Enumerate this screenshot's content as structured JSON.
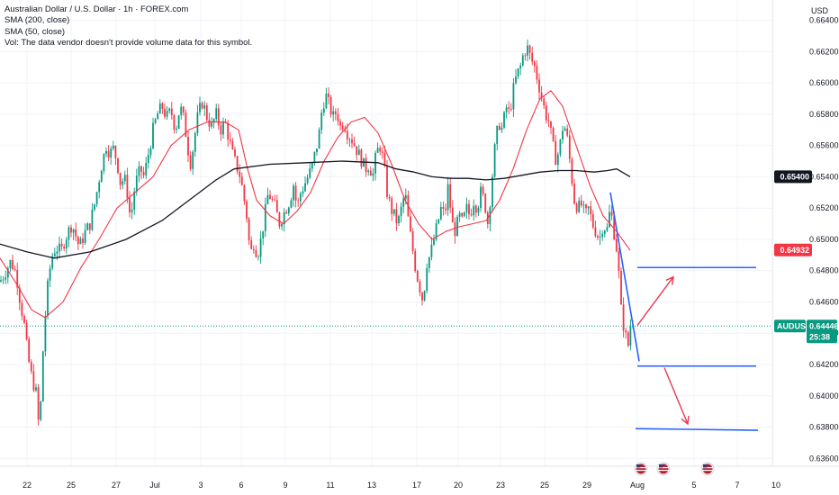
{
  "header": {
    "title": "Australian Dollar / U.S. Dollar · 1h · FOREX.com",
    "indicators": [
      "SMA (200, close)",
      "SMA (50, close)"
    ],
    "volume_note": "Vol: The data vendor doesn't provide volume data for this symbol."
  },
  "currency_label": "USD",
  "price_badges": {
    "sma200": {
      "text": "0.65400",
      "color": "#131722"
    },
    "sma50": {
      "text": "0.64932",
      "color": "#f23645"
    },
    "symbol": {
      "name": "AUDUSD",
      "price": "0.64446",
      "timer": "25:38",
      "color": "#089981"
    }
  },
  "colors": {
    "up": "#089981",
    "down": "#f23645",
    "sma50": "#f23645",
    "sma200": "#131722",
    "drawing_line": "#2962ff",
    "arrow": "#e53950",
    "grid": "#f0f3fa"
  },
  "events": [
    "us-flag-icon",
    "us-flag-icon",
    "us-flag-icon"
  ],
  "chart_data": {
    "type": "candlestick",
    "symbol": "AUDUSD",
    "timeframe": "1h",
    "y_ticks": [
      0.664,
      0.662,
      0.66,
      0.658,
      0.656,
      0.654,
      0.652,
      0.65,
      0.648,
      0.646,
      0.644,
      0.642,
      0.64,
      0.638,
      0.636
    ],
    "y_tick_labels": [
      "0.66400",
      "0.66200",
      "0.66000",
      "0.65800",
      "0.65600",
      "0.65400",
      "0.65200",
      "0.65000",
      "0.64800",
      "0.64600",
      "0.64400",
      "0.64200",
      "0.64000",
      "0.63800",
      "0.63600"
    ],
    "ylim": [
      0.6355,
      0.6653
    ],
    "x_ticks": [
      "22",
      "25",
      "27",
      "Jul",
      "3",
      "6",
      "9",
      "11",
      "13",
      "17",
      "20",
      "23",
      "25",
      "29",
      "Aug",
      "5",
      "7",
      "10"
    ],
    "price_path": [
      [
        0,
        0.6473
      ],
      [
        5,
        0.6478
      ],
      [
        12,
        0.6486
      ],
      [
        18,
        0.6478
      ],
      [
        22,
        0.6462
      ],
      [
        27,
        0.6445
      ],
      [
        30,
        0.643
      ],
      [
        33,
        0.6418
      ],
      [
        36,
        0.641
      ],
      [
        40,
        0.6402
      ],
      [
        43,
        0.6381
      ],
      [
        46,
        0.64
      ],
      [
        48,
        0.6432
      ],
      [
        52,
        0.6465
      ],
      [
        57,
        0.6488
      ],
      [
        62,
        0.6495
      ],
      [
        68,
        0.6492
      ],
      [
        72,
        0.65
      ],
      [
        80,
        0.651
      ],
      [
        88,
        0.6495
      ],
      [
        95,
        0.6505
      ],
      [
        100,
        0.651
      ],
      [
        106,
        0.6525
      ],
      [
        112,
        0.6545
      ],
      [
        118,
        0.656
      ],
      [
        122,
        0.6555
      ],
      [
        126,
        0.6558
      ],
      [
        130,
        0.655
      ],
      [
        134,
        0.6535
      ],
      [
        138,
        0.654
      ],
      [
        142,
        0.6528
      ],
      [
        145,
        0.6512
      ],
      [
        150,
        0.6535
      ],
      [
        156,
        0.6545
      ],
      [
        160,
        0.654
      ],
      [
        165,
        0.6555
      ],
      [
        170,
        0.657
      ],
      [
        175,
        0.658
      ],
      [
        180,
        0.6585
      ],
      [
        185,
        0.6578
      ],
      [
        190,
        0.6582
      ],
      [
        195,
        0.657
      ],
      [
        200,
        0.6585
      ],
      [
        205,
        0.6575
      ],
      [
        208,
        0.656
      ],
      [
        212,
        0.6548
      ],
      [
        216,
        0.6565
      ],
      [
        220,
        0.658
      ],
      [
        225,
        0.6588
      ],
      [
        230,
        0.6578
      ],
      [
        235,
        0.6572
      ],
      [
        240,
        0.658
      ],
      [
        245,
        0.657
      ],
      [
        250,
        0.6575
      ],
      [
        254,
        0.6565
      ],
      [
        258,
        0.6555
      ],
      [
        262,
        0.6548
      ],
      [
        266,
        0.6542
      ],
      [
        270,
        0.653
      ],
      [
        274,
        0.6515
      ],
      [
        278,
        0.649
      ],
      [
        282,
        0.6498
      ],
      [
        286,
        0.649
      ],
      [
        290,
        0.65
      ],
      [
        294,
        0.6515
      ],
      [
        298,
        0.653
      ],
      [
        302,
        0.6525
      ],
      [
        306,
        0.652
      ],
      [
        310,
        0.651
      ],
      [
        314,
        0.6515
      ],
      [
        318,
        0.652
      ],
      [
        322,
        0.6525
      ],
      [
        326,
        0.6535
      ],
      [
        330,
        0.652
      ],
      [
        334,
        0.653
      ],
      [
        338,
        0.6535
      ],
      [
        342,
        0.654
      ],
      [
        346,
        0.6545
      ],
      [
        350,
        0.6555
      ],
      [
        354,
        0.6565
      ],
      [
        358,
        0.6585
      ],
      [
        362,
        0.6592
      ],
      [
        366,
        0.6585
      ],
      [
        370,
        0.6578
      ],
      [
        374,
        0.6582
      ],
      [
        378,
        0.6572
      ],
      [
        382,
        0.6575
      ],
      [
        386,
        0.6568
      ],
      [
        390,
        0.6565
      ],
      [
        394,
        0.656
      ],
      [
        398,
        0.6555
      ],
      [
        402,
        0.655
      ],
      [
        406,
        0.6545
      ],
      [
        410,
        0.6548
      ],
      [
        414,
        0.654
      ],
      [
        418,
        0.6555
      ],
      [
        422,
        0.656
      ],
      [
        426,
        0.655
      ],
      [
        430,
        0.653
      ],
      [
        434,
        0.652
      ],
      [
        438,
        0.6515
      ],
      [
        442,
        0.651
      ],
      [
        446,
        0.652
      ],
      [
        450,
        0.653
      ],
      [
        454,
        0.651
      ],
      [
        458,
        0.6495
      ],
      [
        462,
        0.648
      ],
      [
        466,
        0.647
      ],
      [
        470,
        0.646
      ],
      [
        474,
        0.6485
      ],
      [
        478,
        0.649
      ],
      [
        482,
        0.65
      ],
      [
        486,
        0.651
      ],
      [
        490,
        0.652
      ],
      [
        494,
        0.6515
      ],
      [
        498,
        0.6535
      ],
      [
        502,
        0.651
      ],
      [
        506,
        0.6505
      ],
      [
        510,
        0.6515
      ],
      [
        514,
        0.651
      ],
      [
        518,
        0.652
      ],
      [
        522,
        0.6515
      ],
      [
        526,
        0.6525
      ],
      [
        530,
        0.652
      ],
      [
        534,
        0.653
      ],
      [
        538,
        0.6525
      ],
      [
        542,
        0.651
      ],
      [
        546,
        0.6535
      ],
      [
        550,
        0.656
      ],
      [
        554,
        0.6575
      ],
      [
        558,
        0.657
      ],
      [
        562,
        0.6585
      ],
      [
        566,
        0.658
      ],
      [
        570,
        0.6595
      ],
      [
        574,
        0.6605
      ],
      [
        578,
        0.661
      ],
      [
        582,
        0.662
      ],
      [
        586,
        0.6622
      ],
      [
        590,
        0.6615
      ],
      [
        594,
        0.661
      ],
      [
        598,
        0.66
      ],
      [
        602,
        0.659
      ],
      [
        606,
        0.658
      ],
      [
        610,
        0.6575
      ],
      [
        614,
        0.656
      ],
      [
        618,
        0.655
      ],
      [
        622,
        0.656
      ],
      [
        626,
        0.6575
      ],
      [
        630,
        0.6565
      ],
      [
        634,
        0.6545
      ],
      [
        638,
        0.6525
      ],
      [
        642,
        0.652
      ],
      [
        646,
        0.6522
      ],
      [
        650,
        0.6515
      ],
      [
        654,
        0.652
      ],
      [
        658,
        0.651
      ],
      [
        662,
        0.6505
      ],
      [
        666,
        0.65
      ],
      [
        670,
        0.651
      ],
      [
        674,
        0.6505
      ],
      [
        678,
        0.652
      ],
      [
        682,
        0.6505
      ],
      [
        686,
        0.649
      ],
      [
        690,
        0.6455
      ],
      [
        694,
        0.644
      ],
      [
        698,
        0.6432
      ],
      [
        702,
        0.6445
      ],
      [
        705,
        0.6444
      ]
    ],
    "sma50_path": [
      [
        0,
        0.6488
      ],
      [
        20,
        0.647
      ],
      [
        35,
        0.6455
      ],
      [
        50,
        0.645
      ],
      [
        70,
        0.646
      ],
      [
        90,
        0.6482
      ],
      [
        110,
        0.65
      ],
      [
        130,
        0.652
      ],
      [
        150,
        0.653
      ],
      [
        170,
        0.654
      ],
      [
        190,
        0.656
      ],
      [
        210,
        0.657
      ],
      [
        230,
        0.6575
      ],
      [
        250,
        0.6575
      ],
      [
        265,
        0.657
      ],
      [
        275,
        0.6545
      ],
      [
        285,
        0.6525
      ],
      [
        300,
        0.6515
      ],
      [
        315,
        0.651
      ],
      [
        330,
        0.6518
      ],
      [
        345,
        0.653
      ],
      [
        360,
        0.655
      ],
      [
        375,
        0.6565
      ],
      [
        390,
        0.6575
      ],
      [
        405,
        0.6578
      ],
      [
        420,
        0.6568
      ],
      [
        435,
        0.6548
      ],
      [
        450,
        0.6525
      ],
      [
        465,
        0.651
      ],
      [
        480,
        0.65
      ],
      [
        495,
        0.6505
      ],
      [
        510,
        0.6508
      ],
      [
        525,
        0.651
      ],
      [
        540,
        0.6512
      ],
      [
        555,
        0.6525
      ],
      [
        570,
        0.6545
      ],
      [
        585,
        0.657
      ],
      [
        600,
        0.659
      ],
      [
        612,
        0.6595
      ],
      [
        625,
        0.6585
      ],
      [
        640,
        0.656
      ],
      [
        655,
        0.6535
      ],
      [
        670,
        0.6515
      ],
      [
        685,
        0.6505
      ],
      [
        700,
        0.6493
      ]
    ],
    "sma200_path": [
      [
        0,
        0.6497
      ],
      [
        30,
        0.6492
      ],
      [
        60,
        0.6488
      ],
      [
        100,
        0.6492
      ],
      [
        140,
        0.65
      ],
      [
        180,
        0.6512
      ],
      [
        210,
        0.6525
      ],
      [
        240,
        0.6538
      ],
      [
        260,
        0.6545
      ],
      [
        300,
        0.6548
      ],
      [
        340,
        0.6549
      ],
      [
        380,
        0.655
      ],
      [
        420,
        0.6549
      ],
      [
        440,
        0.6545
      ],
      [
        460,
        0.6543
      ],
      [
        480,
        0.654
      ],
      [
        500,
        0.6539
      ],
      [
        520,
        0.6539
      ],
      [
        540,
        0.6538
      ],
      [
        560,
        0.6539
      ],
      [
        580,
        0.6541
      ],
      [
        600,
        0.6543
      ],
      [
        620,
        0.6544
      ],
      [
        640,
        0.6544
      ],
      [
        660,
        0.6543
      ],
      [
        675,
        0.6544
      ],
      [
        685,
        0.6545
      ],
      [
        700,
        0.654
      ]
    ],
    "drawings": {
      "trendline": [
        [
          678,
          0.653
        ],
        [
          710,
          0.6422
        ]
      ],
      "upper_line": [
        [
          708,
          0.6482
        ],
        [
          840,
          0.6482
        ]
      ],
      "middle_line": [
        [
          708,
          0.6419
        ],
        [
          840,
          0.6419
        ]
      ],
      "lower_line": [
        [
          706,
          0.6379
        ],
        [
          842,
          0.6378
        ]
      ],
      "arrow_up": [
        [
          708,
          0.6445
        ],
        [
          748,
          0.6476
        ]
      ],
      "arrow_down": [
        [
          738,
          0.6418
        ],
        [
          764,
          0.6382
        ]
      ]
    },
    "last_price": 0.64446,
    "grid": true
  }
}
